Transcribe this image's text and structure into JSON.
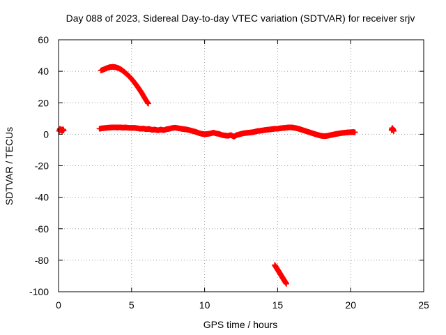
{
  "chart_data": {
    "type": "scatter",
    "title": "Day 088 of 2023, Sidereal Day-to-day VTEC variation (SDTVAR) for receiver srjv",
    "xlabel": "GPS time / hours",
    "ylabel": "SDTVAR / TECUs",
    "xlim": [
      0,
      25
    ],
    "ylim": [
      -100,
      60
    ],
    "xticks": [
      0,
      5,
      10,
      15,
      20,
      25
    ],
    "yticks": [
      -100,
      -80,
      -60,
      -40,
      -20,
      0,
      20,
      40,
      60
    ],
    "grid": true,
    "marker": "plus",
    "color": "#ff0000",
    "series": [
      {
        "name": "segment-a",
        "points": [
          [
            0.05,
            2
          ],
          [
            0.1,
            3.5
          ],
          [
            0.15,
            2.5
          ],
          [
            0.2,
            3
          ],
          [
            0.25,
            2
          ],
          [
            0.3,
            3.2
          ],
          [
            0.35,
            2.4
          ]
        ]
      },
      {
        "name": "segment-b",
        "points": [
          [
            2.9,
            40.5
          ],
          [
            3.1,
            41.2
          ],
          [
            3.3,
            42
          ],
          [
            3.5,
            42.6
          ],
          [
            3.7,
            42.8
          ],
          [
            3.9,
            42.6
          ],
          [
            4.1,
            42
          ],
          [
            4.3,
            41
          ],
          [
            4.5,
            39.6
          ],
          [
            4.7,
            38
          ],
          [
            4.9,
            36.2
          ],
          [
            5.1,
            34
          ],
          [
            5.3,
            31.6
          ],
          [
            5.5,
            29
          ],
          [
            5.7,
            26.2
          ],
          [
            5.9,
            23
          ],
          [
            6.1,
            20
          ],
          [
            6.15,
            19.5
          ]
        ]
      },
      {
        "name": "segment-c",
        "points": [
          [
            2.8,
            3.5
          ],
          [
            3.0,
            3.8
          ],
          [
            3.2,
            4
          ],
          [
            3.4,
            4.2
          ],
          [
            3.6,
            4.3
          ],
          [
            3.8,
            4.4
          ],
          [
            4.0,
            4.3
          ],
          [
            4.2,
            4.4
          ],
          [
            4.4,
            4.2
          ],
          [
            4.6,
            4.3
          ],
          [
            4.8,
            4.1
          ],
          [
            5.0,
            4
          ],
          [
            5.2,
            4.1
          ],
          [
            5.4,
            3.8
          ],
          [
            5.6,
            3.5
          ],
          [
            5.8,
            3.6
          ],
          [
            6.0,
            3.2
          ],
          [
            6.2,
            3.4
          ],
          [
            6.4,
            2.8
          ],
          [
            6.6,
            3
          ],
          [
            6.8,
            2.5
          ],
          [
            7.0,
            3
          ],
          [
            7.2,
            2.6
          ],
          [
            7.4,
            3.2
          ],
          [
            7.6,
            3.5
          ],
          [
            7.8,
            4
          ],
          [
            8.0,
            4.2
          ],
          [
            8.2,
            3.8
          ],
          [
            8.4,
            3.5
          ],
          [
            8.6,
            3.2
          ],
          [
            8.8,
            3
          ],
          [
            9.0,
            2.5
          ],
          [
            9.2,
            2
          ],
          [
            9.4,
            1.5
          ],
          [
            9.6,
            0.8
          ],
          [
            9.8,
            0.3
          ],
          [
            10.0,
            0
          ],
          [
            10.2,
            0.2
          ],
          [
            10.4,
            0.5
          ],
          [
            10.6,
            1
          ],
          [
            10.8,
            0.5
          ],
          [
            11.0,
            0.2
          ],
          [
            11.2,
            -0.5
          ],
          [
            11.4,
            -0.8
          ],
          [
            11.6,
            -1
          ],
          [
            11.8,
            -0.5
          ],
          [
            12.0,
            -1.5
          ],
          [
            12.2,
            -0.5
          ],
          [
            12.4,
            0
          ],
          [
            12.6,
            0.5
          ],
          [
            12.8,
            0.8
          ],
          [
            13.0,
            1
          ],
          [
            13.2,
            1.2
          ],
          [
            13.4,
            1.5
          ],
          [
            13.6,
            2
          ],
          [
            13.8,
            2.2
          ],
          [
            14.0,
            2.5
          ],
          [
            14.2,
            2.8
          ],
          [
            14.4,
            3
          ],
          [
            14.6,
            3.2
          ],
          [
            14.8,
            3.5
          ],
          [
            15.0,
            3.5
          ],
          [
            15.2,
            3.8
          ],
          [
            15.4,
            4
          ],
          [
            15.6,
            4.2
          ],
          [
            15.8,
            4.4
          ],
          [
            16.0,
            4.3
          ],
          [
            16.2,
            4
          ],
          [
            16.4,
            3.6
          ],
          [
            16.6,
            3
          ],
          [
            16.8,
            2.4
          ],
          [
            17.0,
            1.8
          ],
          [
            17.2,
            1.2
          ],
          [
            17.4,
            0.6
          ],
          [
            17.6,
            0
          ],
          [
            17.8,
            -0.5
          ],
          [
            18.0,
            -1
          ],
          [
            18.2,
            -1.2
          ],
          [
            18.4,
            -1
          ],
          [
            18.6,
            -0.6
          ],
          [
            18.8,
            -0.2
          ],
          [
            19.0,
            0.2
          ],
          [
            19.2,
            0.5
          ],
          [
            19.4,
            0.8
          ],
          [
            19.6,
            1
          ],
          [
            19.8,
            1.2
          ],
          [
            20.0,
            1.3
          ],
          [
            20.2,
            1.4
          ],
          [
            20.3,
            1.2
          ]
        ]
      },
      {
        "name": "segment-d",
        "points": [
          [
            22.8,
            2.5
          ],
          [
            22.85,
            4
          ],
          [
            22.9,
            3
          ],
          [
            22.95,
            2
          ]
        ]
      },
      {
        "name": "segment-e",
        "points": [
          [
            14.8,
            -83
          ],
          [
            14.9,
            -84.5
          ],
          [
            15.0,
            -86
          ],
          [
            15.1,
            -87.5
          ],
          [
            15.2,
            -89
          ],
          [
            15.3,
            -90.5
          ],
          [
            15.4,
            -92
          ],
          [
            15.5,
            -93.5
          ],
          [
            15.6,
            -95
          ]
        ]
      }
    ]
  }
}
